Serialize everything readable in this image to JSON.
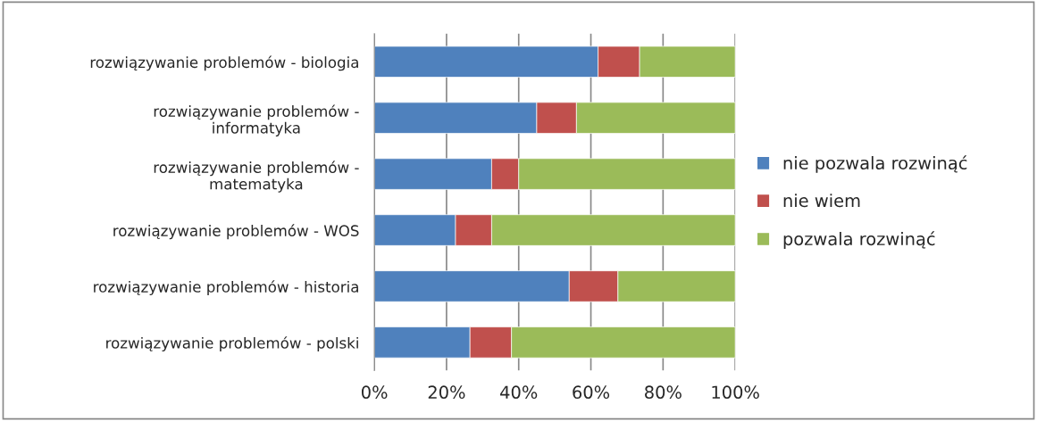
{
  "chart_data": {
    "type": "bar",
    "orientation": "horizontal",
    "stacked": true,
    "categories": [
      "rozwiązywanie problemów - biologia",
      "rozwiązywanie problemów -\ninformatyka",
      "rozwiązywanie problemów -\nmatematyka",
      "rozwiązywanie problemów - WOS",
      "rozwiązywanie problemów - historia",
      "rozwiązywanie problemów - polski"
    ],
    "series": [
      {
        "name": "nie pozwala rozwinąć",
        "color": "#4f81bd",
        "values": [
          62,
          45,
          32.5,
          22.5,
          54,
          26.5
        ]
      },
      {
        "name": "nie wiem",
        "color": "#c0504d",
        "values": [
          11.5,
          11,
          7.5,
          10,
          13.5,
          11.5
        ]
      },
      {
        "name": "pozwala rozwinąć",
        "color": "#9bbb59",
        "values": [
          26.5,
          44,
          60,
          67.5,
          32.5,
          62
        ]
      }
    ],
    "xlim": [
      0,
      100
    ],
    "xticks": [
      {
        "value": 0,
        "label": "0%"
      },
      {
        "value": 20,
        "label": "20%"
      },
      {
        "value": 40,
        "label": "40%"
      },
      {
        "value": 60,
        "label": "60%"
      },
      {
        "value": 80,
        "label": "80%"
      },
      {
        "value": 100,
        "label": "100%"
      }
    ],
    "grid": "x",
    "legend": "right"
  }
}
